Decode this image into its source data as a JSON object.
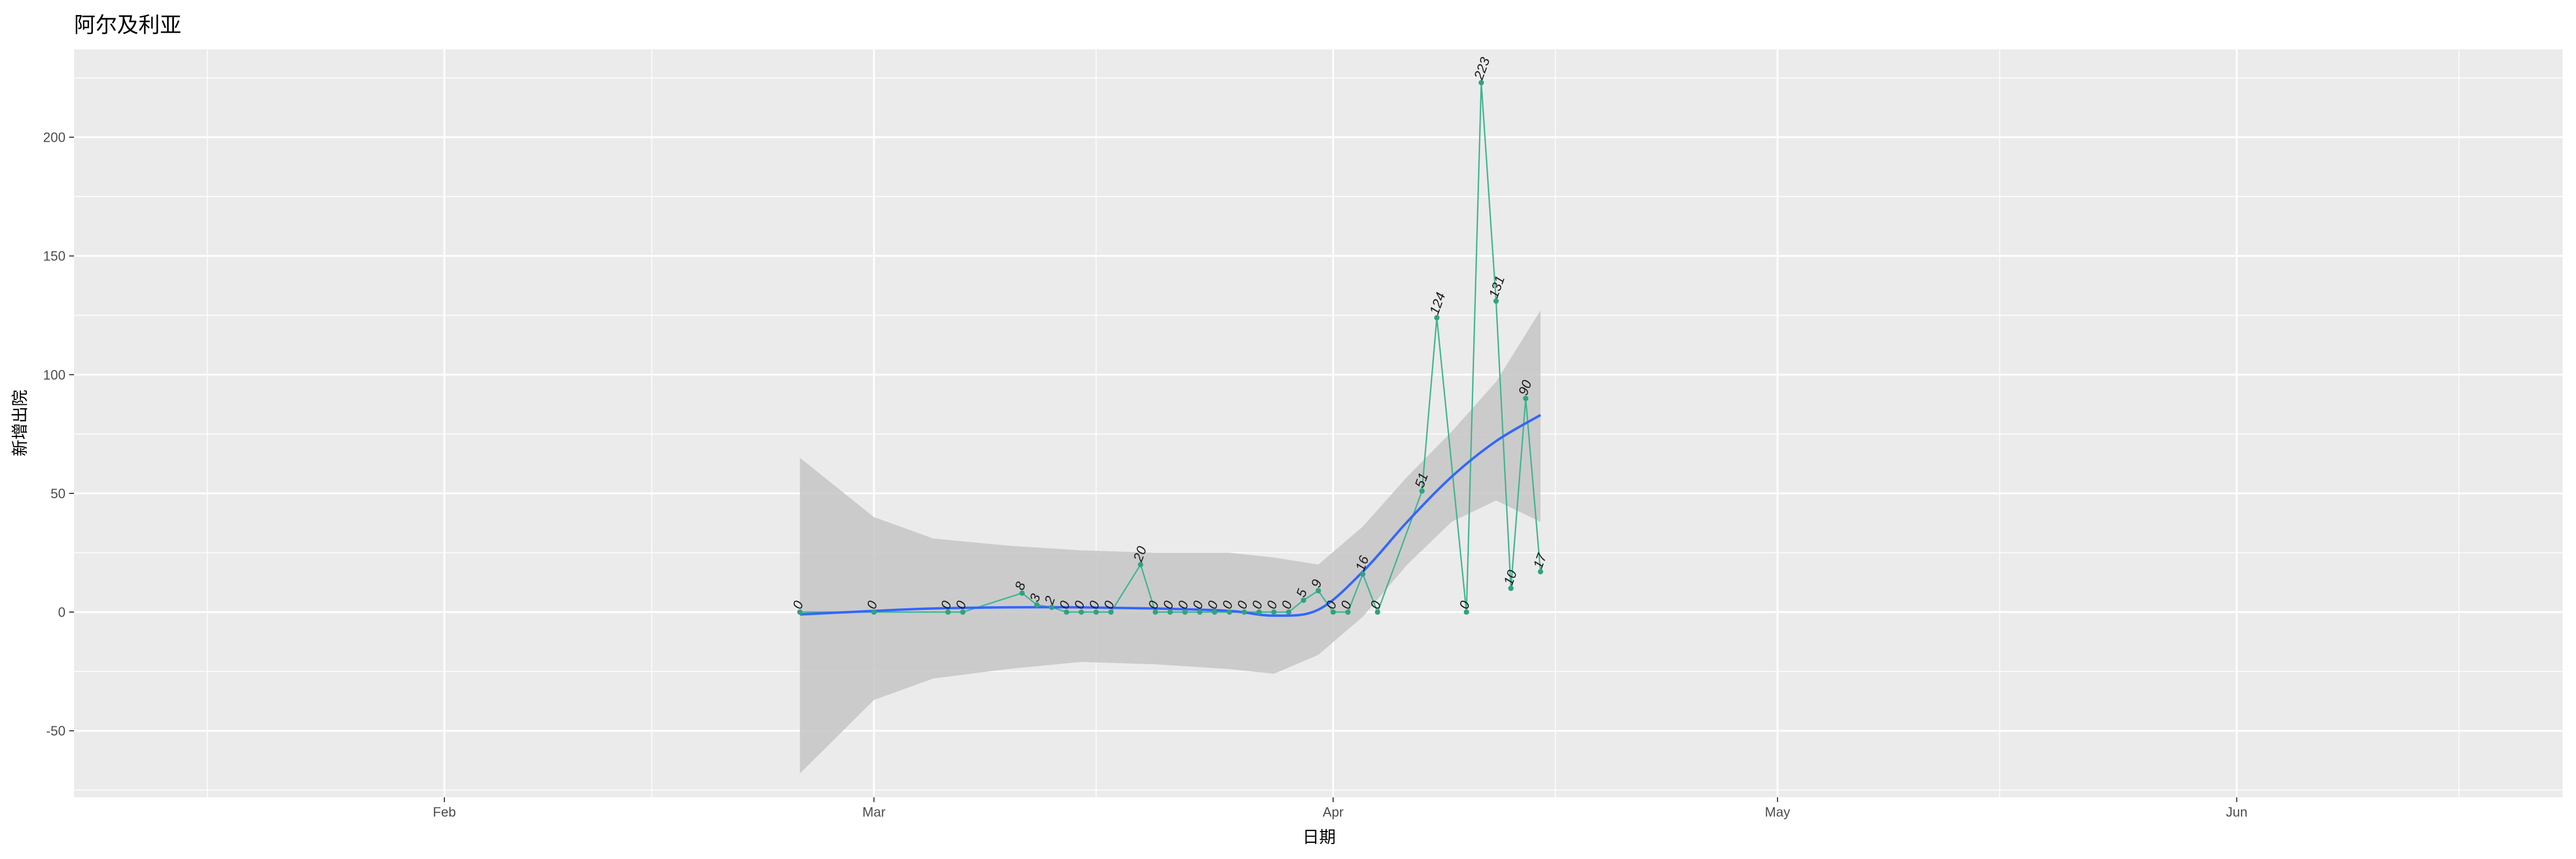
{
  "chart_data": {
    "type": "line",
    "title": "阿尔及利亚",
    "xlabel": "日期",
    "ylabel": "新增出院",
    "xlim": [
      "2020-01-07",
      "2020-06-23"
    ],
    "ylim": [
      -78,
      237
    ],
    "x_ticks": [
      {
        "date": "2020-02-01",
        "label": "Feb"
      },
      {
        "date": "2020-03-01",
        "label": "Mar"
      },
      {
        "date": "2020-04-01",
        "label": "Apr"
      },
      {
        "date": "2020-05-01",
        "label": "May"
      },
      {
        "date": "2020-06-01",
        "label": "Jun"
      }
    ],
    "x_minor_ticks": [
      "2020-01-16",
      "2020-02-15",
      "2020-03-16",
      "2020-04-16",
      "2020-05-16",
      "2020-06-16"
    ],
    "y_ticks": [
      -50,
      0,
      50,
      100,
      150,
      200
    ],
    "y_minor_ticks": [
      -75,
      -25,
      25,
      75,
      125,
      175,
      225
    ],
    "grid": true,
    "colors": {
      "panel": "#ebebeb",
      "grid": "#ffffff",
      "line": "#41b592",
      "points": "#2fa383",
      "smooth": "#3366ff",
      "ribbon": "#c6c6c6"
    },
    "series": [
      {
        "values": [
          {
            "x": "2020-02-25",
            "y": 0
          },
          {
            "x": "2020-03-01",
            "y": 0
          },
          {
            "x": "2020-03-06",
            "y": 0
          },
          {
            "x": "2020-03-07",
            "y": 0
          },
          {
            "x": "2020-03-11",
            "y": 8
          },
          {
            "x": "2020-03-12",
            "y": 3
          },
          {
            "x": "2020-03-13",
            "y": 2
          },
          {
            "x": "2020-03-14",
            "y": 0
          },
          {
            "x": "2020-03-15",
            "y": 0
          },
          {
            "x": "2020-03-16",
            "y": 0
          },
          {
            "x": "2020-03-17",
            "y": 0
          },
          {
            "x": "2020-03-19",
            "y": 20
          },
          {
            "x": "2020-03-20",
            "y": 0
          },
          {
            "x": "2020-03-21",
            "y": 0
          },
          {
            "x": "2020-03-22",
            "y": 0
          },
          {
            "x": "2020-03-23",
            "y": 0
          },
          {
            "x": "2020-03-24",
            "y": 0
          },
          {
            "x": "2020-03-25",
            "y": 0
          },
          {
            "x": "2020-03-26",
            "y": 0
          },
          {
            "x": "2020-03-27",
            "y": 0
          },
          {
            "x": "2020-03-28",
            "y": 0
          },
          {
            "x": "2020-03-29",
            "y": 0
          },
          {
            "x": "2020-03-30",
            "y": 5
          },
          {
            "x": "2020-03-31",
            "y": 9
          },
          {
            "x": "2020-04-01",
            "y": 0
          },
          {
            "x": "2020-04-02",
            "y": 0
          },
          {
            "x": "2020-04-03",
            "y": 16
          },
          {
            "x": "2020-04-04",
            "y": 0
          },
          {
            "x": "2020-04-07",
            "y": 51
          },
          {
            "x": "2020-04-08",
            "y": 124
          },
          {
            "x": "2020-04-10",
            "y": 0
          },
          {
            "x": "2020-04-11",
            "y": 223
          },
          {
            "x": "2020-04-12",
            "y": 131
          },
          {
            "x": "2020-04-13",
            "y": 10
          },
          {
            "x": "2020-04-14",
            "y": 90
          },
          {
            "x": "2020-04-15",
            "y": 17
          }
        ]
      }
    ],
    "smooth": [
      {
        "x": "2020-02-25",
        "y": -1,
        "lo": -68,
        "hi": 65
      },
      {
        "x": "2020-03-01",
        "y": 0.5,
        "lo": -37,
        "hi": 40
      },
      {
        "x": "2020-03-05",
        "y": 1.5,
        "lo": -28,
        "hi": 31
      },
      {
        "x": "2020-03-10",
        "y": 2,
        "lo": -24,
        "hi": 28
      },
      {
        "x": "2020-03-15",
        "y": 2,
        "lo": -21,
        "hi": 26
      },
      {
        "x": "2020-03-20",
        "y": 1.5,
        "lo": -22,
        "hi": 25
      },
      {
        "x": "2020-03-25",
        "y": 0.5,
        "lo": -24,
        "hi": 25
      },
      {
        "x": "2020-03-28",
        "y": -1.5,
        "lo": -26,
        "hi": 23
      },
      {
        "x": "2020-03-31",
        "y": 1,
        "lo": -18,
        "hi": 20
      },
      {
        "x": "2020-04-03",
        "y": 17,
        "lo": -2,
        "hi": 36
      },
      {
        "x": "2020-04-06",
        "y": 38,
        "lo": 20,
        "hi": 57
      },
      {
        "x": "2020-04-09",
        "y": 57,
        "lo": 38,
        "hi": 76
      },
      {
        "x": "2020-04-12",
        "y": 72,
        "lo": 47,
        "hi": 97
      },
      {
        "x": "2020-04-15",
        "y": 83,
        "lo": 38,
        "hi": 127
      }
    ]
  }
}
